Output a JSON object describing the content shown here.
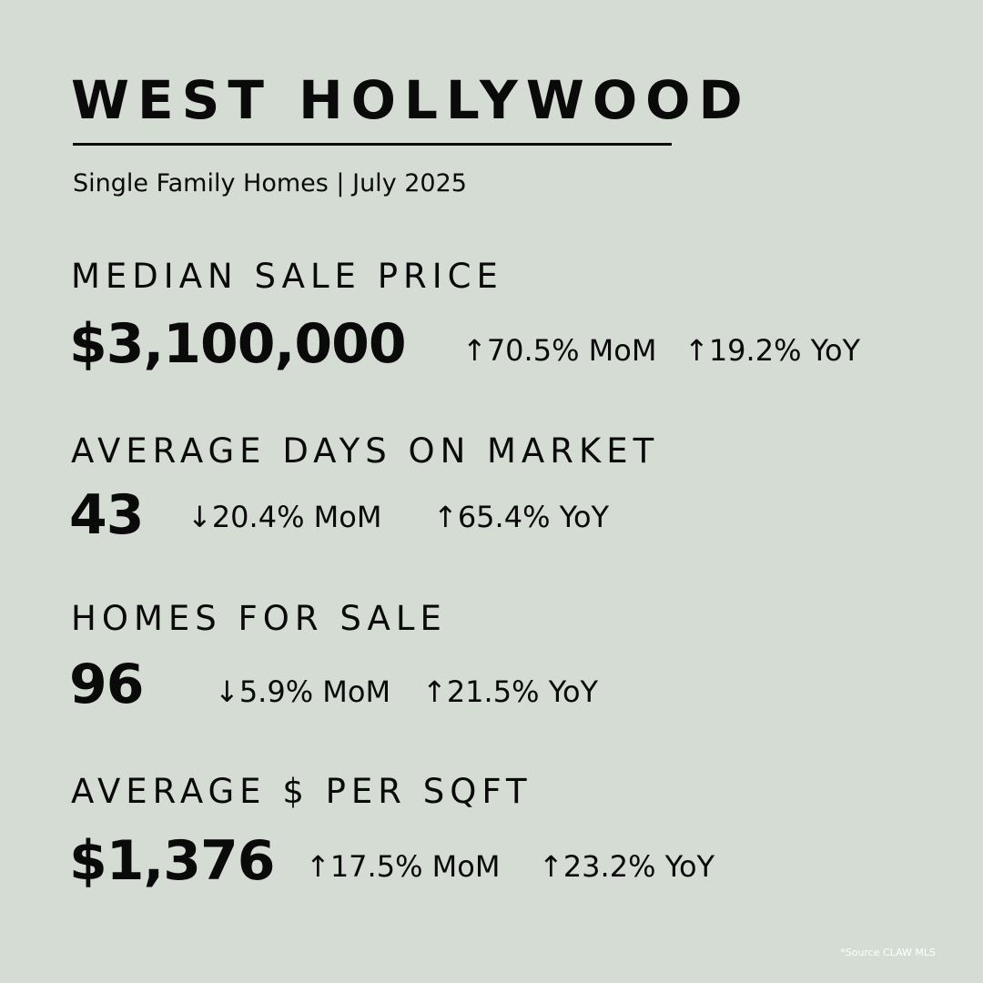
{
  "header": {
    "title": "WEST HOLLYWOOD",
    "subtitle": "Single Family Homes | July 2025"
  },
  "metrics": [
    {
      "label": "MEDIAN SALE PRICE",
      "value": "$3,100,000",
      "mom": "↑70.5% MoM",
      "yoy": "↑19.2% YoY"
    },
    {
      "label": "AVERAGE DAYS ON MARKET",
      "value": "43",
      "mom": "↓20.4% MoM",
      "yoy": "↑65.4% YoY"
    },
    {
      "label": "HOMES FOR SALE",
      "value": "96",
      "mom": "↓5.9% MoM",
      "yoy": "↑21.5% YoY"
    },
    {
      "label": "AVERAGE $ PER SQFT",
      "value": "$1,376",
      "mom": "↑17.5% MoM",
      "yoy": "↑23.2% YoY"
    }
  ],
  "footer": {
    "source": "*Source CLAW MLS"
  },
  "colors": {
    "background": "#d4dcd4",
    "text": "#0a0a0a",
    "source_text": "#ffffff"
  }
}
